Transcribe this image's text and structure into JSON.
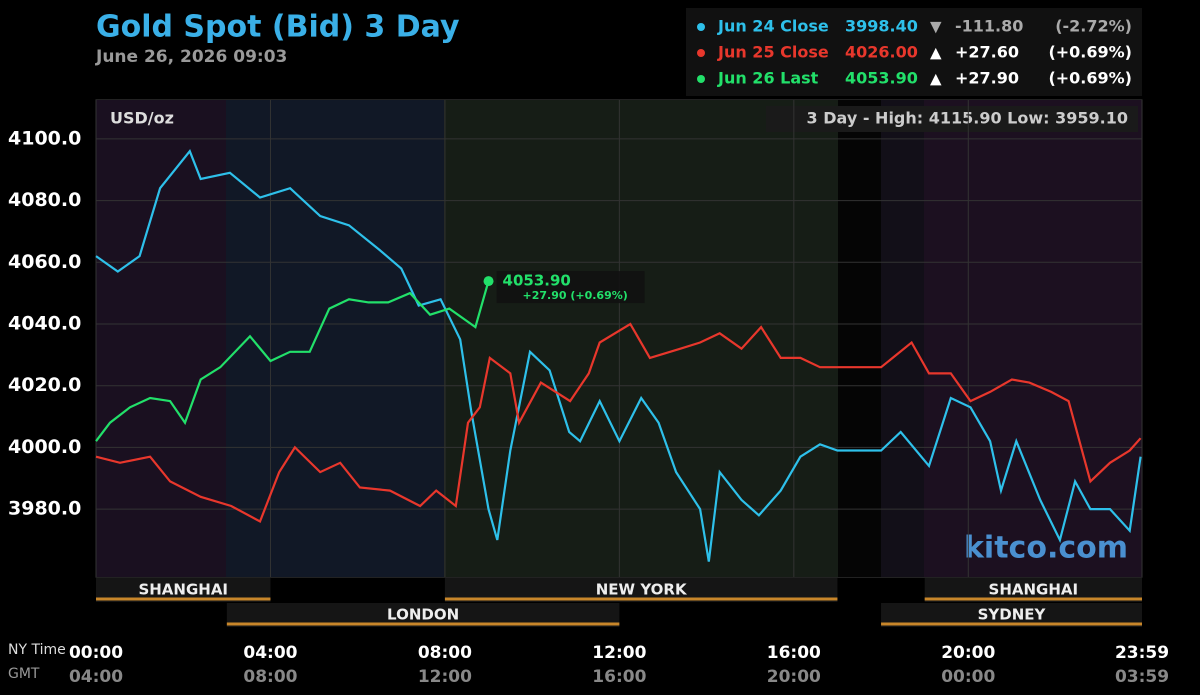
{
  "chart_data": {
    "type": "line",
    "title": "Gold Spot (Bid) 3 Day",
    "subtitle": "June 26, 2026 09:03",
    "unit_label": "USD/oz",
    "range_annotation": "3 Day - High: 4115.90  Low: 3959.10",
    "watermark": "kitco.com",
    "x_axis_label": "NY Time",
    "x2_axis_label": "GMT",
    "xlim": [
      0,
      23.983
    ],
    "xticks": [
      {
        "value": 0,
        "label": "00:00"
      },
      {
        "value": 4,
        "label": "04:00"
      },
      {
        "value": 8,
        "label": "08:00"
      },
      {
        "value": 12,
        "label": "12:00"
      },
      {
        "value": 16,
        "label": "16:00"
      },
      {
        "value": 20,
        "label": "20:00"
      },
      {
        "value": 23.983,
        "label": "23:59"
      }
    ],
    "x2ticks": [
      {
        "value": 0,
        "label": "04:00"
      },
      {
        "value": 4,
        "label": "08:00"
      },
      {
        "value": 8,
        "label": "12:00"
      },
      {
        "value": 12,
        "label": "16:00"
      },
      {
        "value": 16,
        "label": "20:00"
      },
      {
        "value": 20,
        "label": "00:00"
      },
      {
        "value": 23.983,
        "label": "03:59"
      }
    ],
    "ylim": [
      3958,
      4112.6
    ],
    "yticks": [
      {
        "value": 3980,
        "label": "3980.0"
      },
      {
        "value": 4000,
        "label": "4000.0"
      },
      {
        "value": 4020,
        "label": "4020.0"
      },
      {
        "value": 4040,
        "label": "4040.0"
      },
      {
        "value": 4060,
        "label": "4060.0"
      },
      {
        "value": 4080,
        "label": "4080.0"
      },
      {
        "value": 4100,
        "label": "4100.0"
      }
    ],
    "grid": true,
    "sessions": [
      {
        "name": "SHANGHAI",
        "start": 0,
        "end": 4
      },
      {
        "name": "LONDON",
        "start": 3,
        "end": 12
      },
      {
        "name": "NEW YORK",
        "start": 8,
        "end": 17
      },
      {
        "name": "SHANGHAI",
        "start": 19,
        "end": 23.983
      },
      {
        "name": "SYDNEY",
        "start": 18,
        "end": 23.983
      }
    ],
    "legend": [
      {
        "name": "Jun 24 Close",
        "price": "3998.40",
        "direction": "▼",
        "change": "-111.80",
        "change_pct": "(-2.72%)"
      },
      {
        "name": "Jun 25 Close",
        "price": "4026.00",
        "direction": "▲",
        "change": "+27.60",
        "change_pct": "(+0.69%)"
      },
      {
        "name": "Jun 26 Last",
        "price": "4053.90",
        "direction": "▲",
        "change": "+27.90",
        "change_pct": "(+0.69%)"
      }
    ],
    "last_label": {
      "price": "4053.90",
      "change": "+27.90 (+0.69%)"
    },
    "series": [
      {
        "name": "Jun 24 Close",
        "color": "#2ec0ea",
        "x": [
          0,
          0.5,
          1,
          1.47,
          2.15,
          2.4,
          3.07,
          3.76,
          4.45,
          5.14,
          5.8,
          6.5,
          7,
          7.4,
          7.9,
          8.35,
          8.6,
          9,
          9.2,
          9.5,
          9.95,
          10.4,
          10.85,
          11.1,
          11.55,
          12,
          12.5,
          12.9,
          13.3,
          13.85,
          14.05,
          14.3,
          14.8,
          15.2,
          15.7,
          16.15,
          16.6,
          17,
          18,
          18.45,
          19.1,
          19.6,
          20.05,
          20.5,
          20.75,
          21.1,
          21.65,
          22.1,
          22.45,
          22.8,
          23.25,
          23.7,
          23.95
        ],
        "values": [
          4062,
          4057,
          4062,
          4084,
          4096,
          4087,
          4089,
          4081,
          4084,
          4075,
          4072,
          4064,
          4058,
          4046,
          4048,
          4035,
          4012,
          3980,
          3970,
          3999,
          4031,
          4025,
          4005,
          4002,
          4015,
          4002,
          4016,
          4008,
          3992,
          3980,
          3963,
          3992,
          3983,
          3978,
          3986,
          3997,
          4001,
          3999,
          3999,
          4005,
          3994,
          4016,
          4013,
          4002,
          3986,
          4002,
          3983,
          3970,
          3989,
          3980,
          3980,
          3973,
          3997
        ]
      },
      {
        "name": "Jun 25 Close",
        "color": "#e8372c",
        "x": [
          0,
          0.55,
          1.24,
          1.7,
          2.4,
          3.1,
          3.76,
          4.2,
          4.56,
          5.14,
          5.6,
          6.05,
          6.74,
          7.43,
          7.8,
          8.25,
          8.53,
          8.8,
          9.03,
          9.5,
          9.7,
          10.2,
          10.87,
          11.3,
          11.55,
          12.25,
          12.7,
          13.4,
          13.85,
          14.3,
          14.8,
          15.25,
          15.7,
          16.15,
          16.6,
          17,
          18,
          18.7,
          19.1,
          19.6,
          20.05,
          20.5,
          21,
          21.4,
          21.9,
          22.3,
          22.8,
          23.25,
          23.7,
          23.95
        ],
        "values": [
          3997,
          3995,
          3997,
          3989,
          3984,
          3981,
          3976,
          3992,
          4000,
          3992,
          3995,
          3987,
          3986,
          3981,
          3986,
          3981,
          4008,
          4013,
          4029,
          4024,
          4008,
          4021,
          4015,
          4024,
          4034,
          4040,
          4029,
          4032,
          4034,
          4037,
          4032,
          4039,
          4029,
          4029,
          4026,
          4026,
          4026,
          4034,
          4024,
          4024,
          4015,
          4018,
          4022,
          4021,
          4018,
          4015,
          3989,
          3995,
          3999,
          4003
        ]
      },
      {
        "name": "Jun 26 Last",
        "color": "#22e06a",
        "x": [
          0,
          0.32,
          0.78,
          1.24,
          1.7,
          2.04,
          2.4,
          2.85,
          3.53,
          4,
          4.45,
          4.9,
          5.35,
          5.8,
          6.25,
          6.7,
          7.2,
          7.66,
          8.1,
          8.7,
          9
        ],
        "values": [
          4002,
          4008,
          4013,
          4016,
          4015,
          4008,
          4022,
          4026,
          4036,
          4028,
          4031,
          4031,
          4045,
          4048,
          4047,
          4047,
          4050,
          4043,
          4045,
          4039,
          4053.9
        ]
      }
    ]
  }
}
